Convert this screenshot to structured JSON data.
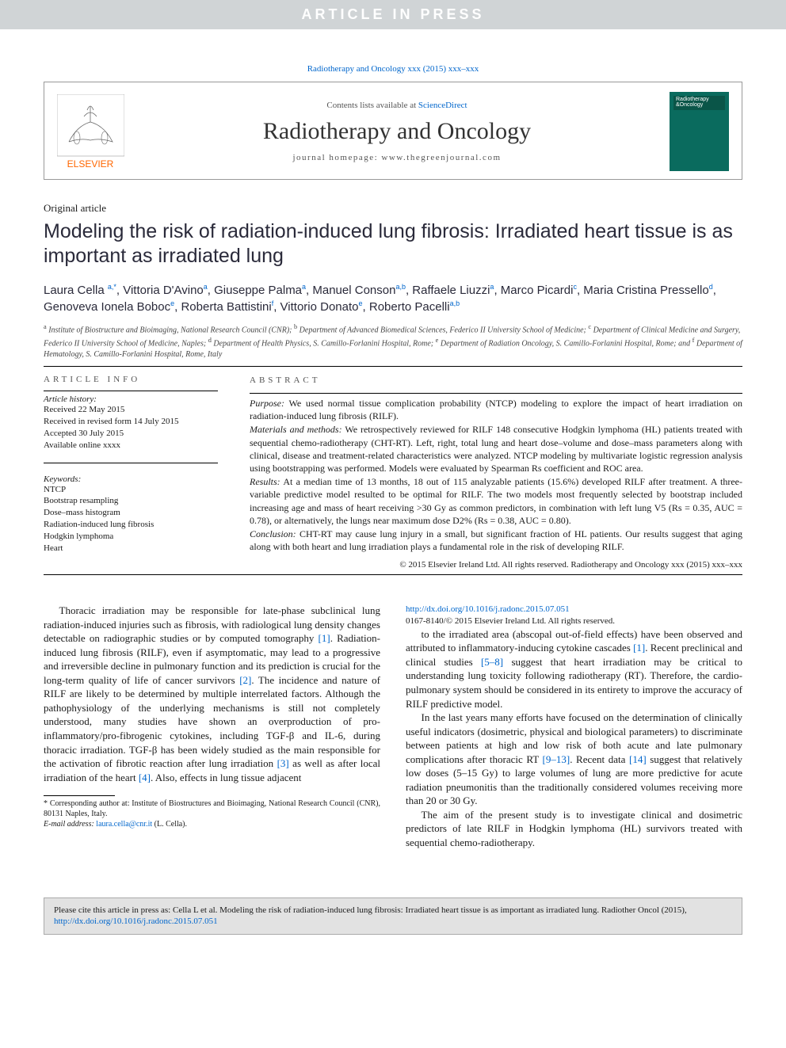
{
  "banner": "ARTICLE IN PRESS",
  "citation_line": "Radiotherapy and Oncology xxx (2015) xxx–xxx",
  "header": {
    "contents_prefix": "Contents lists available at ",
    "contents_link": "ScienceDirect",
    "journal": "Radiotherapy and Oncology",
    "homepage": "journal homepage: www.thegreenjournal.com"
  },
  "article_type": "Original article",
  "title": "Modeling the risk of radiation-induced lung fibrosis: Irradiated heart tissue is as important as irradiated lung",
  "authors_html": "Laura Cella <sup class='aff'>a,*</sup>, Vittoria D'Avino<sup class='aff'>a</sup>, Giuseppe Palma<sup class='aff'>a</sup>, Manuel Conson<sup class='aff'>a,b</sup>, Raffaele Liuzzi<sup class='aff'>a</sup>, Marco Picardi<sup class='aff'>c</sup>, Maria Cristina Pressello<sup class='aff'>d</sup>, Genoveva Ionela Boboc<sup class='aff'>e</sup>, Roberta Battistini<sup class='aff'>f</sup>, Vittorio Donato<sup class='aff'>e</sup>, Roberto Pacelli<sup class='aff'>a,b</sup>",
  "affiliations_html": "<sup>a</sup> Institute of Biostructure and Bioimaging, National Research Council (CNR); <sup>b</sup> Department of Advanced Biomedical Sciences, Federico II University School of Medicine; <sup>c</sup> Department of Clinical Medicine and Surgery, Federico II University School of Medicine, Naples; <sup>d</sup> Department of Health Physics, S. Camillo-Forlanini Hospital, Rome; <sup>e</sup> Department of Radiation Oncology, S. Camillo-Forlanini Hospital, Rome; and <sup>f</sup> Department of Hematology, S. Camillo-Forlanini Hospital, Rome, Italy",
  "info": {
    "header": "article info",
    "history_label": "Article history:",
    "history": [
      "Received 22 May 2015",
      "Received in revised form 14 July 2015",
      "Accepted 30 July 2015",
      "Available online xxxx"
    ],
    "keywords_label": "Keywords:",
    "keywords": [
      "NTCP",
      "Bootstrap resampling",
      "Dose–mass histogram",
      "Radiation-induced lung fibrosis",
      "Hodgkin lymphoma",
      "Heart"
    ]
  },
  "abstract": {
    "header": "abstract",
    "purpose": "Purpose: We used normal tissue complication probability (NTCP) modeling to explore the impact of heart irradiation on radiation-induced lung fibrosis (RILF).",
    "methods": "Materials and methods: We retrospectively reviewed for RILF 148 consecutive Hodgkin lymphoma (HL) patients treated with sequential chemo-radiotherapy (CHT-RT). Left, right, total lung and heart dose–volume and dose–mass parameters along with clinical, disease and treatment-related characteristics were analyzed. NTCP modeling by multivariate logistic regression analysis using bootstrapping was performed. Models were evaluated by Spearman Rs coefficient and ROC area.",
    "results": "Results: At a median time of 13 months, 18 out of 115 analyzable patients (15.6%) developed RILF after treatment. A three-variable predictive model resulted to be optimal for RILF. The two models most frequently selected by bootstrap included increasing age and mass of heart receiving >30 Gy as common predictors, in combination with left lung V5 (Rs = 0.35, AUC = 0.78), or alternatively, the lungs near maximum dose D2% (Rs = 0.38, AUC = 0.80).",
    "conclusion": "Conclusion: CHT-RT may cause lung injury in a small, but significant fraction of HL patients. Our results suggest that aging along with both heart and lung irradiation plays a fundamental role in the risk of developing RILF.",
    "copyright": "© 2015 Elsevier Ireland Ltd. All rights reserved. Radiotherapy and Oncology xxx (2015) xxx–xxx"
  },
  "body": {
    "p1": "Thoracic irradiation may be responsible for late-phase subclinical lung radiation-induced injuries such as fibrosis, with radiological lung density changes detectable on radiographic studies or by computed tomography [1]. Radiation-induced lung fibrosis (RILF), even if asymptomatic, may lead to a progressive and irreversible decline in pulmonary function and its prediction is crucial for the long-term quality of life of cancer survivors [2]. The incidence and nature of RILF are likely to be determined by multiple interrelated factors. Although the pathophysiology of the underlying mechanisms is still not completely understood, many studies have shown an overproduction of pro-inflammatory/pro-fibrogenic cytokines, including TGF-β and IL-6, during thoracic irradiation. TGF-β has been widely studied as the main responsible for the activation of fibrotic reaction after lung irradiation [3] as well as after local irradiation of the heart [4]. Also, effects in lung tissue adjacent",
    "p2": "to the irradiated area (abscopal out-of-field effects) have been observed and attributed to inflammatory-inducing cytokine cascades [1]. Recent preclinical and clinical studies [5–8] suggest that heart irradiation may be critical to understanding lung toxicity following radiotherapy (RT). Therefore, the cardio-pulmonary system should be considered in its entirety to improve the accuracy of RILF predictive model.",
    "p3": "In the last years many efforts have focused on the determination of clinically useful indicators (dosimetric, physical and biological parameters) to discriminate between patients at high and low risk of both acute and late pulmonary complications after thoracic RT [9–13]. Recent data [14] suggest that relatively low doses (5–15 Gy) to large volumes of lung are more predictive for acute radiation pneumonitis than the traditionally considered volumes receiving more than 20 or 30 Gy.",
    "p4": "The aim of the present study is to investigate clinical and dosimetric predictors of late RILF in Hodgkin lymphoma (HL) survivors treated with sequential chemo-radiotherapy."
  },
  "footnote": {
    "corresponding": "* Corresponding author at: Institute of Biostructures and Bioimaging, National Research Council (CNR), 80131 Naples, Italy.",
    "email_label": "E-mail address:",
    "email": "laura.cella@cnr.it",
    "email_suffix": " (L. Cella)."
  },
  "doi": {
    "url": "http://dx.doi.org/10.1016/j.radonc.2015.07.051",
    "line2": "0167-8140/© 2015 Elsevier Ireland Ltd. All rights reserved."
  },
  "cite_box": {
    "text": "Please cite this article in press as: Cella L et al. Modeling the risk of radiation-induced lung fibrosis: Irradiated heart tissue is as important as irradiated lung. Radiother Oncol (2015), ",
    "url": "http://dx.doi.org/10.1016/j.radonc.2015.07.051"
  },
  "colors": {
    "link": "#0066cc",
    "banner_bg": "#d0d4d6",
    "cover_bg": "#0a6b5e",
    "cite_bg": "#e2e2e2"
  }
}
